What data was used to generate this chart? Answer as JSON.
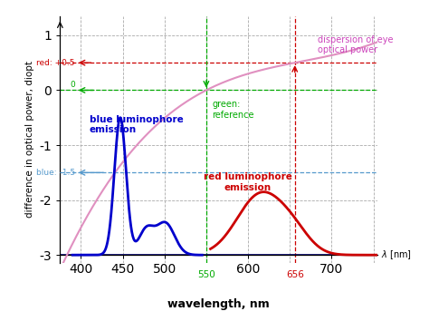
{
  "xlim": [
    375,
    755
  ],
  "ylim": [
    -3.15,
    1.35
  ],
  "xlabel": "wavelength, nm",
  "ylabel": "difference in optical power, diopt",
  "bg_color": "#ffffff",
  "grid_color": "#aaaaaa",
  "dispersion_color": "#e090c0",
  "blue_color": "#0000cc",
  "red_color": "#cc0000",
  "annotation_blue_color": "#0000cc",
  "annotation_red_color": "#cc0000",
  "annotation_green_color": "#00aa00",
  "annotation_magenta_color": "#cc44bb",
  "ref_line_blue_color": "#5599cc",
  "yticks": [
    -3,
    -2,
    -1,
    0,
    1
  ],
  "xticks": [
    400,
    450,
    500,
    600,
    700
  ],
  "grid_xticks": [
    400,
    450,
    500,
    550,
    600,
    650,
    700,
    750
  ],
  "grid_yticks": [
    -3,
    -2,
    -1,
    0,
    1
  ]
}
